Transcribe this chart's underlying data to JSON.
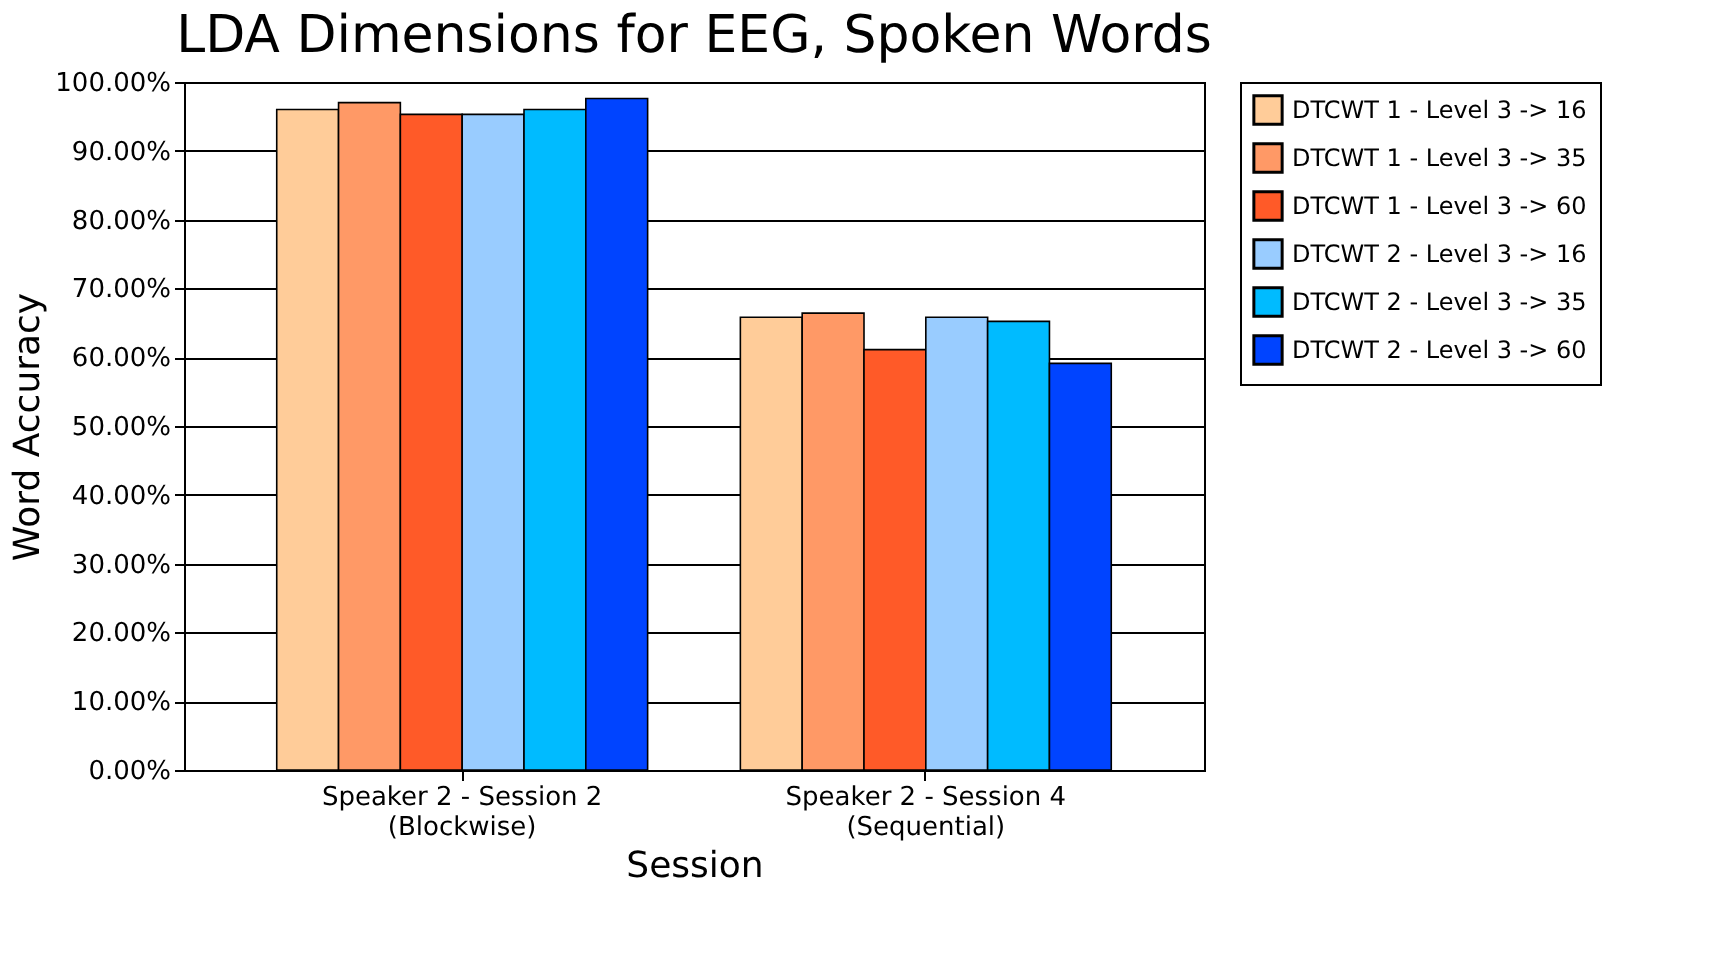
{
  "chart_data": {
    "type": "bar",
    "title": "LDA Dimensions for EEG, Spoken Words",
    "xlabel": "Session",
    "ylabel": "Word Accuracy",
    "categories": [
      "Speaker 2 - Session 2\n(Blockwise)",
      "Speaker 2 - Session 4\n(Sequential)"
    ],
    "series": [
      {
        "name": "DTCWT 1 - Level 3 -> 16",
        "color": "#ffcc99",
        "values": [
          96.0,
          65.8
        ]
      },
      {
        "name": "DTCWT 1 - Level 3 -> 35",
        "color": "#ff9966",
        "values": [
          97.0,
          66.4
        ]
      },
      {
        "name": "DTCWT 1 - Level 3 -> 60",
        "color": "#ff5a28",
        "values": [
          95.3,
          61.1
        ]
      },
      {
        "name": "DTCWT 2 - Level 3 -> 16",
        "color": "#99ccff",
        "values": [
          95.3,
          65.8
        ]
      },
      {
        "name": "DTCWT 2 - Level 3 -> 35",
        "color": "#00bbff",
        "values": [
          96.0,
          65.2
        ]
      },
      {
        "name": "DTCWT 2 - Level 3 -> 60",
        "color": "#0044ff",
        "values": [
          97.6,
          59.1
        ]
      }
    ],
    "ylim": [
      0,
      100
    ],
    "yticks": [
      {
        "value": 0,
        "label": "0.00%"
      },
      {
        "value": 10,
        "label": "10.00%"
      },
      {
        "value": 20,
        "label": "20.00%"
      },
      {
        "value": 30,
        "label": "30.00%"
      },
      {
        "value": 40,
        "label": "40.00%"
      },
      {
        "value": 50,
        "label": "50.00%"
      },
      {
        "value": 60,
        "label": "60.00%"
      },
      {
        "value": 70,
        "label": "70.00%"
      },
      {
        "value": 80,
        "label": "80.00%"
      },
      {
        "value": 90,
        "label": "90.00%"
      },
      {
        "value": 100,
        "label": "100.00%"
      }
    ],
    "grid": "y",
    "legend": "right"
  }
}
